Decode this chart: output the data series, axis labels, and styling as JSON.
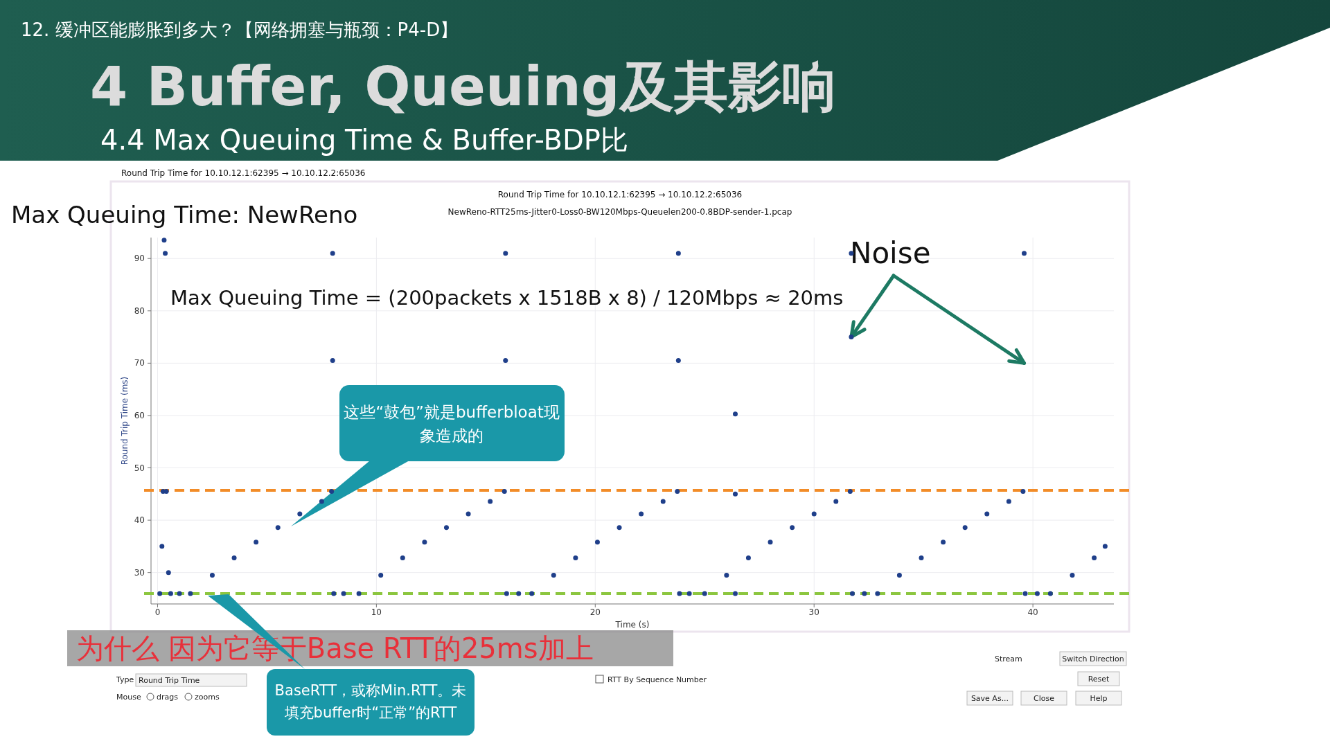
{
  "chart_data": {
    "type": "scatter",
    "title": "Round Trip Time for 10.10.12.1:62395 → 10.10.12.2:65036",
    "subtitle": "NewReno-RTT25ms-Jitter0-Loss0-BW120Mbps-Queuelen200-0.8BDP-sender-1.pcap",
    "xlabel": "Time (s)",
    "ylabel": "Round Trip Time (ms)",
    "x": [
      0.1,
      0.2,
      0.25,
      0.3,
      0.35,
      0.4,
      0.5,
      0.6,
      1.0,
      1.5,
      2.5,
      3.5,
      4.5,
      5.5,
      6.5,
      7.5,
      7.95,
      8.0,
      8.0,
      8.05,
      8.5,
      9.2,
      10.2,
      11.2,
      12.2,
      13.2,
      14.2,
      15.2,
      15.85,
      15.9,
      15.9,
      15.95,
      16.5,
      17.1,
      18.1,
      19.1,
      20.1,
      21.1,
      22.1,
      23.1,
      23.75,
      23.8,
      23.8,
      23.85,
      24.3,
      25.0,
      26.0,
      26.4,
      26.4,
      26.4,
      27.0,
      28.0,
      29.0,
      30.0,
      31.0,
      31.65,
      31.7,
      31.7,
      31.75,
      32.3,
      32.9,
      33.9,
      34.9,
      35.9,
      36.9,
      37.9,
      38.9,
      39.55,
      39.6,
      39.65,
      40.2,
      40.8,
      41.8,
      42.8,
      43.3
    ],
    "values": [
      26,
      35,
      45.5,
      93.5,
      91,
      45.5,
      30,
      26,
      26,
      26,
      29.5,
      32.8,
      35.8,
      38.6,
      41.2,
      43.6,
      45.5,
      91,
      70.5,
      26,
      26,
      26,
      29.5,
      32.8,
      35.8,
      38.6,
      41.2,
      43.6,
      45.5,
      91,
      70.5,
      26,
      26,
      26,
      29.5,
      32.8,
      35.8,
      38.6,
      41.2,
      43.6,
      45.5,
      91,
      70.5,
      26,
      26,
      26,
      29.5,
      60.3,
      45,
      26,
      32.8,
      35.8,
      38.6,
      41.2,
      43.6,
      45.5,
      91,
      75,
      26,
      26,
      26,
      29.5,
      32.8,
      35.8,
      38.6,
      41.2,
      43.6,
      45.5,
      91,
      26,
      26,
      26,
      29.5,
      32.8,
      35
    ],
    "color": "#1f3f8a",
    "marker": "circle",
    "grid": true,
    "xlim": [
      -0.3,
      43.7
    ],
    "ylim": [
      24,
      94
    ],
    "xticks": [
      0,
      10,
      20,
      30,
      40
    ],
    "yticks": [
      30,
      40,
      50,
      60,
      70,
      80,
      90
    ],
    "ref_lines": [
      {
        "axis": "y",
        "value": 45.7,
        "color": "#f28c28",
        "line_style": "dashed"
      },
      {
        "axis": "y",
        "value": 26,
        "color": "#8cc63f",
        "line_style": "dashed"
      }
    ],
    "annotations": [
      "12. 缓冲区能膨胀到多大？【网络拥塞与瓶颈：P4-D】",
      "4 Buffer, Queuing及其影响",
      "4.4 Max Queuing Time & Buffer-BDP比",
      "Round Trip Time for 10.10.12.1:62395 → 10.10.12.2:65036",
      "Max Queuing Time: NewReno",
      "Max Queuing Time = (200packets x 1518B x 8)  / 120Mbps ≈ 20ms",
      {
        "text": "Noise",
        "x": 31.7,
        "y": 75
      },
      "这些“鼓包”就是bufferbloat现象造成的",
      "为什么 因为它等于Base RTT的25ms加上",
      "BaseRTT，或称Min.RTT。未填充buffer时“正常”的RTT",
      "Type",
      "Round Trip Time",
      "Mouse",
      "drags",
      "zooms",
      "RTT By Sequence Number",
      "Stream",
      "Switch Direction",
      "Reset",
      "Save As...",
      "Close",
      "Help"
    ]
  }
}
